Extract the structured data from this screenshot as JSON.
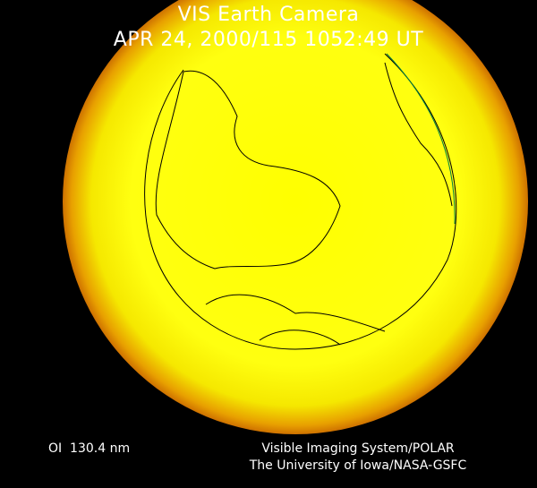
{
  "header": {
    "title": "VIS Earth Camera",
    "timestamp": "APR 24, 2000/115 1052:49 UT"
  },
  "footer": {
    "wavelength": "OI  130.4 nm",
    "instrument": "Visible Imaging System/POLAR",
    "credit": "The University of Iowa/NASA-GSFC"
  },
  "colors": {
    "disk": "#ffff00",
    "glow": "#b84a00",
    "coastline": "#000000",
    "terminator": "#008040"
  }
}
